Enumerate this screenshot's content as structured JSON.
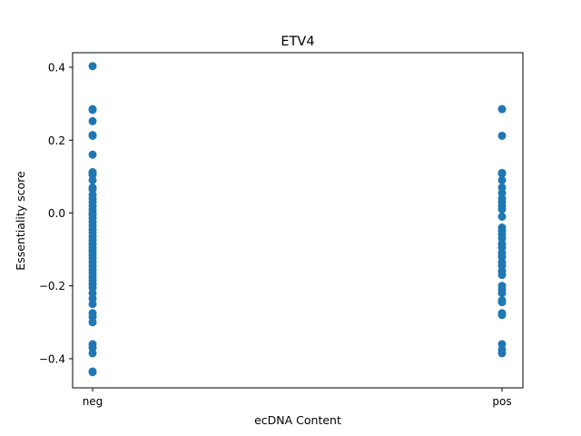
{
  "chart_data": {
    "type": "scatter",
    "title": "ETV4",
    "xlabel": "ecDNA Content",
    "ylabel": "Essentiality score",
    "categories": [
      "neg",
      "pos"
    ],
    "ylim": [
      -0.48,
      0.44
    ],
    "yticks": [
      -0.4,
      -0.2,
      0.0,
      0.2,
      0.4
    ],
    "ytick_labels": [
      "−0.4",
      "−0.2",
      "0.0",
      "0.2",
      "0.4"
    ],
    "grid": false,
    "marker_color": "#1f77b4",
    "series": [
      {
        "category": "neg",
        "values": [
          0.403,
          0.285,
          0.283,
          0.252,
          0.214,
          0.212,
          0.16,
          0.112,
          0.108,
          0.105,
          0.09,
          0.07,
          0.065,
          0.05,
          0.04,
          0.03,
          0.02,
          0.01,
          0.0,
          -0.005,
          -0.015,
          -0.025,
          -0.035,
          -0.045,
          -0.055,
          -0.065,
          -0.075,
          -0.085,
          -0.095,
          -0.105,
          -0.115,
          -0.125,
          -0.135,
          -0.145,
          -0.155,
          -0.165,
          -0.175,
          -0.185,
          -0.195,
          -0.205,
          -0.22,
          -0.235,
          -0.25,
          -0.275,
          -0.285,
          -0.3,
          -0.36,
          -0.37,
          -0.385,
          -0.435,
          -0.437
        ]
      },
      {
        "category": "pos",
        "values": [
          0.285,
          0.212,
          0.11,
          0.108,
          0.09,
          0.07,
          0.055,
          0.04,
          0.03,
          0.02,
          0.01,
          -0.01,
          -0.04,
          -0.05,
          -0.06,
          -0.07,
          -0.085,
          -0.095,
          -0.11,
          -0.12,
          -0.135,
          -0.145,
          -0.16,
          -0.17,
          -0.2,
          -0.21,
          -0.22,
          -0.24,
          -0.245,
          -0.275,
          -0.28,
          -0.36,
          -0.375,
          -0.385
        ]
      }
    ]
  }
}
